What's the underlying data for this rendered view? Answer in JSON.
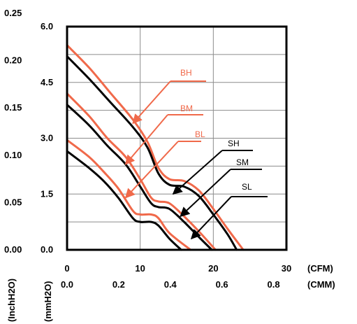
{
  "chart_data": {
    "type": "line",
    "title": "",
    "x_axis_primary": {
      "unit": "(CFM)",
      "ticks": [
        "0",
        "10",
        "20",
        "30"
      ],
      "range": [
        0,
        30
      ]
    },
    "x_axis_secondary": {
      "unit": "(CMM)",
      "ticks": [
        "0.0",
        "0.2",
        "0.4",
        "0.6",
        "0.8"
      ]
    },
    "y_axis_mm": {
      "unit": "(mmH2O)",
      "ticks": [
        "0.0",
        "1.5",
        "3.0",
        "4.5",
        "6.0"
      ],
      "range": [
        0,
        6
      ]
    },
    "y_axis_inch": {
      "unit": "(InchH2O)",
      "ticks": [
        "0.00",
        "0.05",
        "0.10",
        "0.15",
        "0.20",
        "0.25"
      ]
    },
    "grid": true,
    "series": [
      {
        "name": "BH",
        "color": "#f0694a",
        "x": [
          0,
          3,
          6,
          9,
          11,
          12.5,
          14,
          16,
          18,
          20,
          22,
          24.1
        ],
        "y": [
          5.5,
          4.9,
          4.2,
          3.5,
          2.9,
          2.2,
          1.9,
          1.85,
          1.6,
          1.1,
          0.55,
          0
        ]
      },
      {
        "name": "SH",
        "color": "#000000",
        "x": [
          0,
          3,
          6,
          9,
          11,
          12.5,
          14,
          16,
          18,
          20,
          22,
          23.2
        ],
        "y": [
          5.2,
          4.6,
          3.95,
          3.3,
          2.75,
          2.05,
          1.75,
          1.7,
          1.45,
          0.95,
          0.4,
          0
        ]
      },
      {
        "name": "BM",
        "color": "#f0694a",
        "x": [
          0,
          3,
          5.5,
          8,
          10,
          11.5,
          12.5,
          14,
          16,
          18,
          20.3
        ],
        "y": [
          4.2,
          3.6,
          3.0,
          2.5,
          1.9,
          1.4,
          1.3,
          1.25,
          0.9,
          0.5,
          0
        ]
      },
      {
        "name": "SM",
        "color": "#000000",
        "x": [
          0,
          3,
          5.5,
          8,
          10,
          11.5,
          12.5,
          14,
          16,
          18,
          19.8
        ],
        "y": [
          3.9,
          3.35,
          2.8,
          2.3,
          1.7,
          1.25,
          1.15,
          1.1,
          0.75,
          0.35,
          0
        ]
      },
      {
        "name": "BL",
        "color": "#f0694a",
        "x": [
          0,
          3,
          5,
          7,
          9,
          10,
          11.5,
          12.5,
          14,
          16.9
        ],
        "y": [
          2.95,
          2.5,
          2.1,
          1.65,
          1.05,
          0.95,
          0.95,
          0.85,
          0.45,
          0
        ]
      },
      {
        "name": "SL",
        "color": "#000000",
        "x": [
          0,
          3,
          5,
          7,
          9,
          10,
          11.5,
          12.5,
          14,
          15.6
        ],
        "y": [
          2.65,
          2.2,
          1.85,
          1.4,
          0.85,
          0.75,
          0.75,
          0.65,
          0.3,
          0
        ]
      }
    ],
    "annotations": [
      {
        "text": "BH",
        "color": "#f0694a",
        "target": [
          9,
          3.4
        ]
      },
      {
        "text": "BM",
        "color": "#f0694a",
        "target": [
          8,
          2.3
        ]
      },
      {
        "text": "BL",
        "color": "#f0694a",
        "target": [
          8,
          1.4
        ]
      },
      {
        "text": "SH",
        "color": "#000000",
        "target": [
          14.5,
          1.5
        ]
      },
      {
        "text": "SM",
        "color": "#000000",
        "target": [
          15.5,
          0.9
        ]
      },
      {
        "text": "SL",
        "color": "#000000",
        "target": [
          17,
          0.3
        ]
      }
    ]
  }
}
